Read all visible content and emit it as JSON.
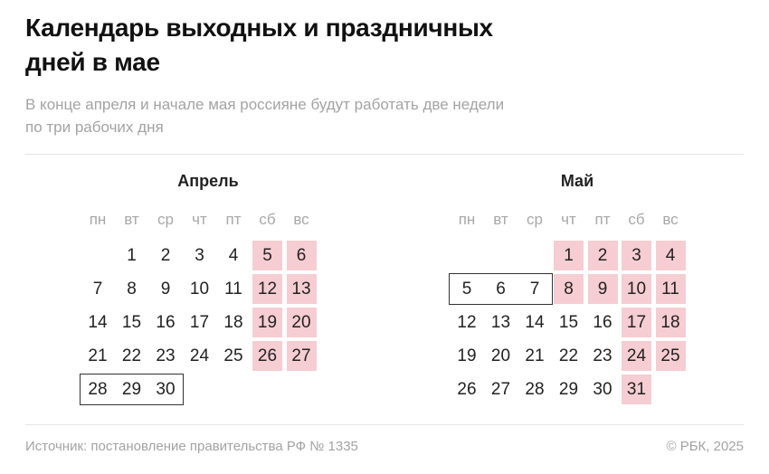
{
  "header": {
    "title_line1": "Календарь выходных и праздничных",
    "title_line2": "дней в мае",
    "subtitle_line1": "В конце апреля и начале мая россияне будут работать две недели",
    "subtitle_line2": "по три рабочих дня"
  },
  "weekdays": [
    "пн",
    "вт",
    "ср",
    "чт",
    "пт",
    "сб",
    "вс"
  ],
  "months": [
    {
      "name": "Апрель",
      "weeks": [
        [
          null,
          "1",
          "2",
          "3",
          "4",
          "5",
          "6"
        ],
        [
          "7",
          "8",
          "9",
          "10",
          "11",
          "12",
          "13"
        ],
        [
          "14",
          "15",
          "16",
          "17",
          "18",
          "19",
          "20"
        ],
        [
          "21",
          "22",
          "23",
          "24",
          "25",
          "26",
          "27"
        ],
        [
          "28",
          "29",
          "30",
          null,
          null,
          null,
          null
        ]
      ],
      "holidays": [
        "5",
        "6",
        "12",
        "13",
        "19",
        "20",
        "26",
        "27"
      ],
      "boxed": [
        "28",
        "29",
        "30"
      ]
    },
    {
      "name": "Май",
      "weeks": [
        [
          null,
          null,
          null,
          "1",
          "2",
          "3",
          "4"
        ],
        [
          "5",
          "6",
          "7",
          "8",
          "9",
          "10",
          "11"
        ],
        [
          "12",
          "13",
          "14",
          "15",
          "16",
          "17",
          "18"
        ],
        [
          "19",
          "20",
          "21",
          "22",
          "23",
          "24",
          "25"
        ],
        [
          "26",
          "27",
          "28",
          "29",
          "30",
          "31",
          null
        ]
      ],
      "holidays": [
        "1",
        "2",
        "3",
        "4",
        "8",
        "9",
        "10",
        "11",
        "17",
        "18",
        "24",
        "25",
        "31"
      ],
      "boxed": [
        "5",
        "6",
        "7"
      ]
    }
  ],
  "footer": {
    "source": "Источник: постановление правительства РФ № 1335",
    "copyright": "© РБК, 2025"
  },
  "colors": {
    "holiday": "#f6cdd2",
    "weekday_label": "#a8a8a8"
  }
}
